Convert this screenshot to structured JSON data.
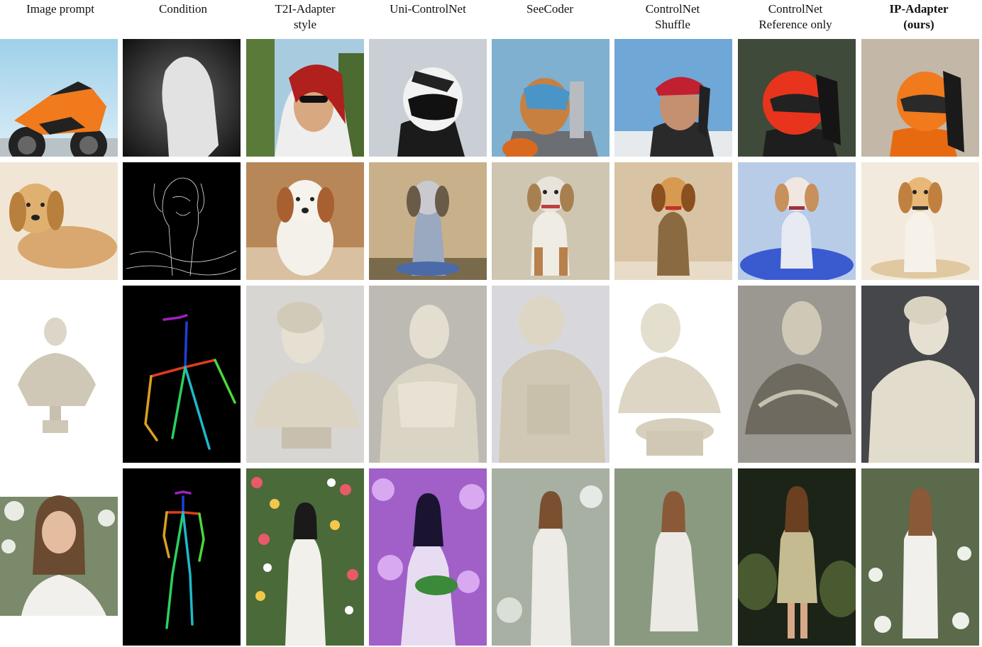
{
  "figure": {
    "columns": [
      {
        "label": "Image prompt"
      },
      {
        "label": "Condition"
      },
      {
        "label": "T2I-Adapter style"
      },
      {
        "label": "Uni-ControlNet"
      },
      {
        "label": "SeeCoder"
      },
      {
        "label": "ControlNet Shuffle"
      },
      {
        "label": "ControlNet Reference only"
      },
      {
        "label": "IP-Adapter (ours)"
      }
    ],
    "rows": [
      {
        "subject": "orange sport motorcycle / helmeted figure",
        "condition": "depth map"
      },
      {
        "subject": "golden dog watercolor",
        "condition": "canny edges"
      },
      {
        "subject": "marble bust statue",
        "condition": "pose skeleton"
      },
      {
        "subject": "woman in white in garden",
        "condition": "pose skeleton"
      }
    ]
  },
  "colors": {
    "pose_head": "#a020c0",
    "pose_spine": "#1f3fd8",
    "pose_shoulder": "#e03b1f",
    "pose_left_arm": "#d9a020",
    "pose_right_arm": "#4ad83a",
    "pose_legs": "#20b8c8"
  }
}
